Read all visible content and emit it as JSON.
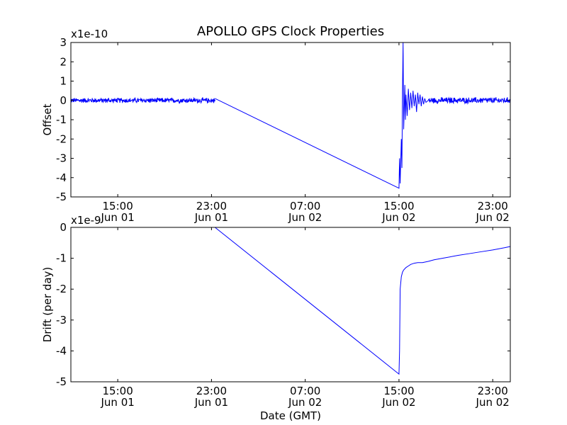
{
  "title": "APOLLO GPS Clock Properties",
  "xlabel": "Date (GMT)",
  "colors": {
    "line": "#0000ff",
    "axes": "#000000",
    "background": "#ffffff"
  },
  "chart_data": [
    {
      "type": "line",
      "title": "APOLLO GPS Clock Properties",
      "xlabel": "",
      "ylabel": "Offset",
      "y_scale_label": "x1e-10",
      "xlim": [
        11.0,
        48.5
      ],
      "ylim": [
        -5,
        3
      ],
      "y_ticks": [
        -5,
        -4,
        -3,
        -2,
        -1,
        0,
        1,
        2,
        3
      ],
      "y_tick_labels": [
        "-5",
        "-4",
        "-3",
        "-2",
        "-1",
        "0",
        "1",
        "2",
        "3"
      ],
      "x_ticks": [
        15,
        23,
        31,
        39,
        47
      ],
      "x_tick_labels": [
        {
          "time": "15:00",
          "date": "Jun 01"
        },
        {
          "time": "23:00",
          "date": "Jun 01"
        },
        {
          "time": "07:00",
          "date": "Jun 02"
        },
        {
          "time": "15:00",
          "date": "Jun 02"
        },
        {
          "time": "23:00",
          "date": "Jun 02"
        }
      ],
      "series": [
        {
          "name": "Offset",
          "noise_segments": [
            {
              "x": [
                11.0,
                23.3
              ],
              "center": 0.0,
              "amplitude": 0.15
            },
            {
              "x": [
                41.5,
                48.5
              ],
              "center": 0.0,
              "amplitude": 0.18
            }
          ],
          "x": [
            23.3,
            39.0,
            39.05,
            39.1,
            39.2,
            39.25,
            39.3,
            39.35,
            39.4,
            39.5,
            39.55,
            39.6,
            39.7,
            39.8,
            39.9,
            40.0,
            40.1,
            40.2,
            40.3,
            40.4,
            40.5,
            40.6,
            40.7,
            40.8,
            40.9,
            41.0,
            41.1,
            41.2,
            41.3,
            41.5
          ],
          "y": [
            0.1,
            -4.55,
            -3.0,
            -4.3,
            -2.0,
            -3.5,
            0.5,
            3.0,
            -1.5,
            0.8,
            -1.0,
            0.3,
            -0.8,
            0.6,
            -0.5,
            0.4,
            -0.4,
            0.5,
            -0.3,
            0.3,
            -0.6,
            0.4,
            -0.2,
            0.3,
            -0.3,
            0.2,
            -0.2,
            0.1,
            -0.1,
            0.0
          ]
        }
      ]
    },
    {
      "type": "line",
      "title": "",
      "xlabel": "Date (GMT)",
      "ylabel": "Drift (per day)",
      "y_scale_label": "x1e-9",
      "xlim": [
        11.0,
        48.5
      ],
      "ylim": [
        -5,
        0
      ],
      "y_ticks": [
        -5,
        -4,
        -3,
        -2,
        -1,
        0
      ],
      "y_tick_labels": [
        "-5",
        "-4",
        "-3",
        "-2",
        "-1",
        "0"
      ],
      "x_ticks": [
        15,
        23,
        31,
        39,
        47
      ],
      "x_tick_labels": [
        {
          "time": "15:00",
          "date": "Jun 01"
        },
        {
          "time": "23:00",
          "date": "Jun 01"
        },
        {
          "time": "07:00",
          "date": "Jun 02"
        },
        {
          "time": "15:00",
          "date": "Jun 02"
        },
        {
          "time": "23:00",
          "date": "Jun 02"
        }
      ],
      "series": [
        {
          "name": "Drift",
          "x": [
            11.0,
            23.3,
            39.0,
            39.05,
            39.1,
            39.2,
            39.3,
            39.4,
            39.6,
            39.8,
            40.0,
            40.3,
            40.6,
            41.0,
            41.5,
            42.0,
            43.0,
            44.0,
            45.0,
            46.0,
            47.0,
            48.0,
            48.5
          ],
          "y": [
            0.0,
            0.0,
            -4.75,
            -4.0,
            -2.0,
            -1.6,
            -1.45,
            -1.38,
            -1.3,
            -1.25,
            -1.2,
            -1.16,
            -1.14,
            -1.14,
            -1.1,
            -1.05,
            -0.98,
            -0.91,
            -0.85,
            -0.79,
            -0.73,
            -0.66,
            -0.62
          ]
        }
      ]
    }
  ]
}
